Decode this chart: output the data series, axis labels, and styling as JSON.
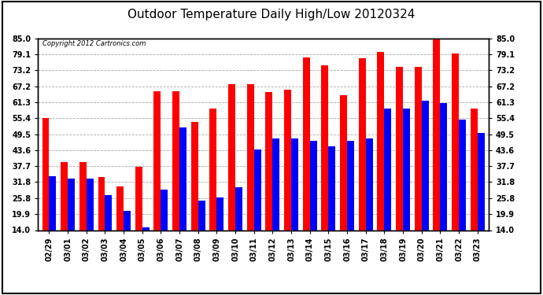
{
  "title": "Outdoor Temperature Daily High/Low 20120324",
  "copyright": "Copyright 2012 Cartronics.com",
  "categories": [
    "02/29",
    "03/01",
    "03/02",
    "03/03",
    "03/04",
    "03/05",
    "03/06",
    "03/07",
    "03/08",
    "03/09",
    "03/10",
    "03/11",
    "03/12",
    "03/13",
    "03/14",
    "03/15",
    "03/16",
    "03/17",
    "03/18",
    "03/19",
    "03/20",
    "03/21",
    "03/22",
    "03/23"
  ],
  "highs": [
    55.4,
    39.2,
    39.2,
    33.8,
    30.2,
    37.4,
    65.3,
    65.3,
    54.0,
    59.0,
    68.0,
    68.0,
    65.0,
    66.0,
    78.0,
    75.0,
    64.0,
    77.5,
    80.0,
    74.5,
    74.5,
    85.5,
    79.5,
    59.0
  ],
  "lows": [
    34.0,
    33.0,
    33.0,
    27.0,
    21.0,
    15.0,
    29.0,
    52.0,
    25.0,
    26.0,
    30.0,
    44.0,
    48.0,
    48.0,
    47.0,
    45.0,
    47.0,
    48.0,
    59.0,
    59.0,
    62.0,
    61.0,
    55.0,
    50.0
  ],
  "high_color": "#ff0000",
  "low_color": "#0000ff",
  "bg_color": "#ffffff",
  "grid_color": "#aaaaaa",
  "yticks": [
    14.0,
    19.9,
    25.8,
    31.8,
    37.7,
    43.6,
    49.5,
    55.4,
    61.3,
    67.2,
    73.2,
    79.1,
    85.0
  ],
  "ymin": 14.0,
  "ymax": 85.0,
  "bar_width": 0.38,
  "title_fontsize": 11,
  "tick_fontsize": 7,
  "copyright_fontsize": 6
}
